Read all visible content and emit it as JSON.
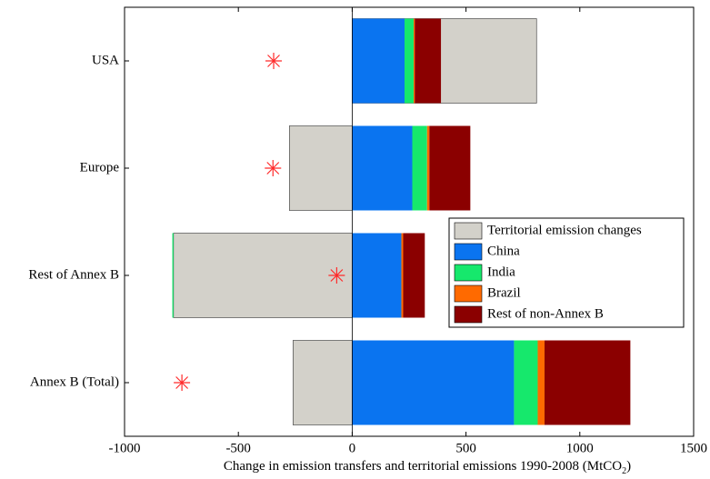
{
  "chart_data": {
    "type": "bar",
    "orientation": "horizontal",
    "categories": [
      "USA",
      "Europe",
      "Rest of Annex B",
      "Annex B (Total)"
    ],
    "series": [
      {
        "name": "Territorial emission changes",
        "color": "#d3d1ca",
        "values": [
          810,
          -276,
          -785,
          -260
        ]
      },
      {
        "name": "China",
        "color": "#0a74f0",
        "values": [
          230,
          264,
          216,
          711
        ]
      },
      {
        "name": "India",
        "color": "#16e86c",
        "values": [
          40,
          65,
          -5,
          104
        ]
      },
      {
        "name": "Brazil",
        "color": "#ff6a00",
        "values": [
          5,
          10,
          8,
          30
        ]
      },
      {
        "name": "Rest of non-Annex B",
        "color": "#8b0000",
        "values": [
          115,
          180,
          95,
          377
        ]
      }
    ],
    "markers": {
      "color": "#ff2a2a",
      "values": [
        -345,
        -348,
        -68,
        -748
      ]
    },
    "xlabel": {
      "text": "Change in emission transfers and territorial emissions 1990-2008 (MtCO",
      "sub": "2",
      "tail": ")"
    },
    "xlim": [
      -1000,
      1500
    ],
    "xticks": [
      -1000,
      -500,
      0,
      500,
      1000,
      1500
    ],
    "zero_line": true
  }
}
